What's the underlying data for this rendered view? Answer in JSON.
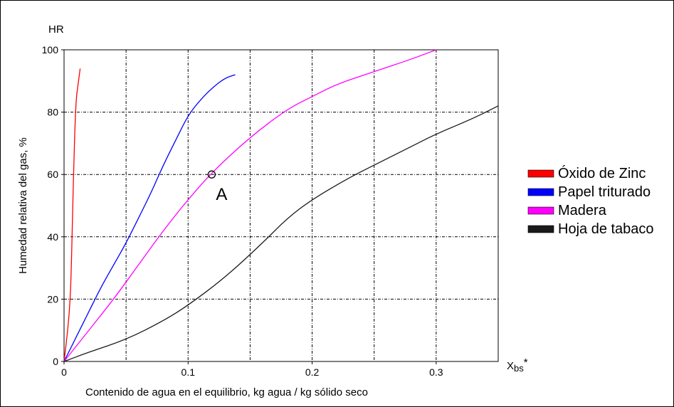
{
  "chart_data": {
    "type": "line",
    "title": "",
    "xlabel": "Contenido de agua en el equilibrio, kg agua / kg sólido seco",
    "ylabel": "Humedad relativa del gas, %",
    "y_axis_symbol": "HR",
    "x_axis_symbol": {
      "main": "X",
      "subscript": "bs",
      "suffix": "*"
    },
    "xlim": [
      0,
      0.35
    ],
    "ylim": [
      0,
      100
    ],
    "xticks": [
      0,
      0.1,
      0.2,
      0.3
    ],
    "xtick_labels": [
      "0",
      "0.1",
      "0.2",
      "0.3"
    ],
    "yticks": [
      0,
      20,
      40,
      60,
      80,
      100
    ],
    "ytick_labels": [
      "0",
      "20",
      "40",
      "60",
      "80",
      "100"
    ],
    "x_gridlines": [
      0.05,
      0.1,
      0.15,
      0.2,
      0.25,
      0.3
    ],
    "y_gridlines": [
      20,
      40,
      60,
      80,
      100
    ],
    "grid": true,
    "legend_position": "right",
    "series": [
      {
        "name": "Óxido de Zinc",
        "color": "#ff0000",
        "x": [
          0,
          0.003,
          0.005,
          0.006,
          0.007,
          0.008,
          0.009,
          0.01,
          0.011,
          0.012,
          0.013
        ],
        "y": [
          0,
          10,
          20,
          32,
          50,
          65,
          78,
          85,
          88,
          91,
          94
        ]
      },
      {
        "name": "Papel triturado",
        "color": "#0000ff",
        "x": [
          0,
          0.01,
          0.02,
          0.03,
          0.04,
          0.05,
          0.06,
          0.07,
          0.08,
          0.09,
          0.1,
          0.11,
          0.12,
          0.13,
          0.138
        ],
        "y": [
          0,
          8,
          16,
          24,
          31,
          38,
          46,
          54,
          63,
          71,
          79,
          84,
          88,
          91,
          92
        ]
      },
      {
        "name": "Madera",
        "color": "#ff00ff",
        "x": [
          0,
          0.02,
          0.04,
          0.06,
          0.08,
          0.1,
          0.12,
          0.15,
          0.18,
          0.2,
          0.22,
          0.25,
          0.28,
          0.3
        ],
        "y": [
          0,
          10,
          20,
          31,
          42,
          52,
          61,
          72,
          81,
          85,
          89,
          93,
          97,
          100
        ]
      },
      {
        "name": "Hoja de tabaco",
        "color": "#1a1a1a",
        "x": [
          0,
          0.02,
          0.05,
          0.08,
          0.1,
          0.13,
          0.16,
          0.18,
          0.2,
          0.23,
          0.25,
          0.28,
          0.3,
          0.33,
          0.35
        ],
        "y": [
          0,
          3,
          7,
          13,
          18,
          27,
          38,
          46,
          52,
          59,
          63,
          69,
          73,
          78,
          82
        ]
      }
    ],
    "annotations": [
      {
        "label": "A",
        "x": 0.119,
        "y": 60,
        "marker": "open-circle"
      }
    ]
  }
}
